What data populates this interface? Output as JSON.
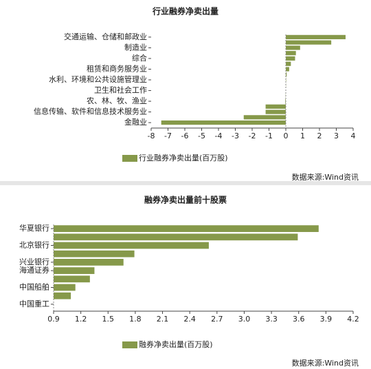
{
  "chart_data": [
    {
      "type": "hbar",
      "title": "行业融券净卖出量",
      "categories": [
        "交通运输、仓储和邮政业",
        null,
        "制造业",
        null,
        "综合",
        null,
        "租赁和商务服务业",
        null,
        "水利、环境和公共设施管理业",
        null,
        "卫生和社会工作",
        null,
        "农、林、牧、渔业",
        null,
        "信息传输、软件和信息技术服务业",
        null,
        "金融业"
      ],
      "series": [
        {
          "name": "行业融券净卖出量(百万股)",
          "color": "#86994a",
          "values": [
            3.55,
            2.7,
            0.85,
            0.6,
            0.55,
            0.3,
            0.2,
            0.05,
            0.02,
            0.01,
            0,
            -0.01,
            -0.03,
            -1.2,
            -1.2,
            -2.5,
            -7.4
          ]
        }
      ],
      "xlim": [
        -8,
        4
      ],
      "xticks": [
        -8,
        -7,
        -6,
        -5,
        -4,
        -3,
        -2,
        -1,
        0,
        1,
        2,
        3,
        4
      ],
      "note": "数据来源:Wind资讯"
    },
    {
      "type": "hbar",
      "title": "融券净卖出量前十股票",
      "categories": [
        "华夏银行",
        null,
        "北京银行",
        null,
        "兴业银行",
        "海通证券",
        null,
        "中国船舶",
        null,
        "中国重工"
      ],
      "series": [
        {
          "name": "融券净卖出量(百万股)",
          "color": "#86994a",
          "values": [
            3.82,
            3.59,
            2.61,
            1.79,
            1.67,
            1.35,
            1.3,
            1.14,
            1.09,
            0.9
          ]
        }
      ],
      "xlim": [
        0.9,
        4.2
      ],
      "xticks": [
        0.9,
        1.2,
        1.5,
        1.8,
        2.1,
        2.4,
        2.7,
        {
          "value": 3.0,
          "label": "3.0"
        },
        3.3,
        3.6,
        3.9,
        4.2
      ],
      "note": "数据来源:Wind资讯"
    }
  ]
}
